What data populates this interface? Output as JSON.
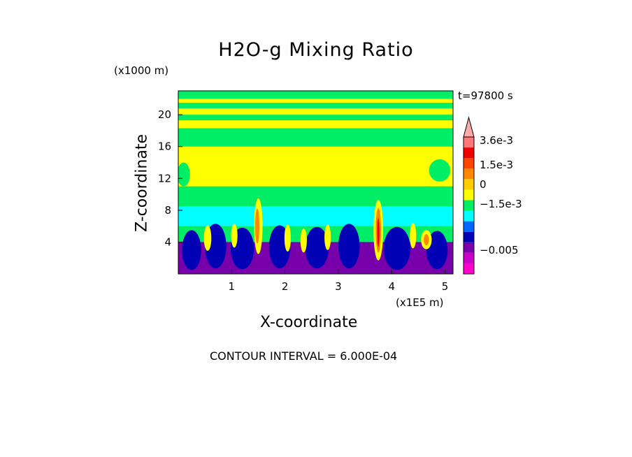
{
  "chart_data": {
    "type": "heatmap",
    "title": "H2O-g Mixing Ratio",
    "xlabel": "X-coordinate",
    "ylabel": "Z-coordinate",
    "x_scale_note": "(x1E5 m)",
    "y_scale_note": "(x1000 m)",
    "time_label": "t=97800 s",
    "contour_interval_label": "CONTOUR INTERVAL = 6.000E-04",
    "xlim": [
      0,
      5.15
    ],
    "ylim": [
      0,
      23
    ],
    "x_ticks": [
      1,
      2,
      3,
      4,
      5
    ],
    "x_tick_labels": [
      "1",
      "2",
      "3",
      "4",
      "5"
    ],
    "y_ticks": [
      4,
      8,
      12,
      16,
      20
    ],
    "y_tick_labels": [
      "4",
      "8",
      "12",
      "16",
      "20"
    ],
    "colorbar": {
      "colors": [
        "#ff00cc",
        "#c800c8",
        "#7800aa",
        "#0000b4",
        "#0066ff",
        "#00ffff",
        "#00ee66",
        "#ffff00",
        "#ffcc00",
        "#ff8800",
        "#ff4400",
        "#ee0000",
        "#ff7777",
        "#ffaaaa"
      ],
      "tick_labels": [
        {
          "value": 0.0036,
          "label": "3.6e-3"
        },
        {
          "value": 0.0015,
          "label": "1.5e-3"
        },
        {
          "value": 0,
          "label": "0"
        },
        {
          "value": -0.0015,
          "label": "−1.5e-3"
        },
        {
          "value": -0.005,
          "label": "−0.005"
        }
      ]
    },
    "regions": {
      "background_color": "#00ee66",
      "layers": [
        {
          "z_bottom": 0,
          "z_top": 4,
          "color": "#7800aa"
        },
        {
          "z_bottom": 6,
          "z_top": 8.5,
          "color": "#00ffff"
        },
        {
          "z_bottom": 8.5,
          "z_top": 11,
          "color": "#00ee66"
        },
        {
          "z_bottom": 11,
          "z_top": 16,
          "color": "#ffff00"
        }
      ],
      "blobs": [
        {
          "x": 0.25,
          "z": 3,
          "rx": 0.18,
          "rz": 2.5,
          "color": "#0000b4"
        },
        {
          "x": 0.7,
          "z": 3.5,
          "rx": 0.2,
          "rz": 2.8,
          "color": "#0000b4"
        },
        {
          "x": 1.2,
          "z": 3.2,
          "rx": 0.22,
          "rz": 2.6,
          "color": "#0000b4"
        },
        {
          "x": 1.9,
          "z": 3.4,
          "rx": 0.2,
          "rz": 2.7,
          "color": "#0000b4"
        },
        {
          "x": 2.6,
          "z": 3.3,
          "rx": 0.22,
          "rz": 2.6,
          "color": "#0000b4"
        },
        {
          "x": 3.2,
          "z": 3.5,
          "rx": 0.2,
          "rz": 2.8,
          "color": "#0000b4"
        },
        {
          "x": 4.1,
          "z": 3.2,
          "rx": 0.25,
          "rz": 2.7,
          "color": "#0000b4"
        },
        {
          "x": 4.85,
          "z": 3.0,
          "rx": 0.2,
          "rz": 2.4,
          "color": "#0000b4"
        },
        {
          "x": 0.55,
          "z": 4.5,
          "rx": 0.07,
          "rz": 1.6,
          "color": "#ffff00"
        },
        {
          "x": 1.05,
          "z": 4.8,
          "rx": 0.06,
          "rz": 1.5,
          "color": "#ffff00"
        },
        {
          "x": 1.5,
          "z": 6.0,
          "rx": 0.08,
          "rz": 3.5,
          "color": "#ffff00"
        },
        {
          "x": 1.48,
          "z": 6.0,
          "rx": 0.04,
          "rz": 2.2,
          "color": "#ff8800"
        },
        {
          "x": 2.05,
          "z": 4.5,
          "rx": 0.06,
          "rz": 1.7,
          "color": "#ffff00"
        },
        {
          "x": 2.35,
          "z": 4.2,
          "rx": 0.06,
          "rz": 1.5,
          "color": "#ffff00"
        },
        {
          "x": 2.8,
          "z": 4.6,
          "rx": 0.06,
          "rz": 1.6,
          "color": "#ffff00"
        },
        {
          "x": 3.75,
          "z": 5.5,
          "rx": 0.09,
          "rz": 3.8,
          "color": "#ffff00"
        },
        {
          "x": 3.75,
          "z": 5.5,
          "rx": 0.05,
          "rz": 2.8,
          "color": "#ff8800"
        },
        {
          "x": 3.75,
          "z": 5.2,
          "rx": 0.02,
          "rz": 1.8,
          "color": "#ee0000"
        },
        {
          "x": 4.4,
          "z": 4.8,
          "rx": 0.06,
          "rz": 1.6,
          "color": "#ffff00"
        },
        {
          "x": 4.65,
          "z": 4.3,
          "rx": 0.1,
          "rz": 1.2,
          "color": "#ffff00"
        },
        {
          "x": 4.65,
          "z": 4.3,
          "rx": 0.05,
          "rz": 0.7,
          "color": "#ff8800"
        },
        {
          "x": 0.5,
          "z": 17.5,
          "rx": 0.6,
          "rz": 0.5,
          "color": "#00ee66"
        },
        {
          "x": 1.5,
          "z": 17.0,
          "rx": 0.5,
          "rz": 0.4,
          "color": "#00ee66"
        },
        {
          "x": 3.6,
          "z": 17.5,
          "rx": 0.4,
          "rz": 0.5,
          "color": "#00ee66"
        },
        {
          "x": 4.6,
          "z": 17.8,
          "rx": 0.5,
          "rz": 0.4,
          "color": "#00ee66"
        },
        {
          "x": 2.5,
          "z": 12.5,
          "rx": 0.35,
          "rz": 1.2,
          "color": "#ffff00"
        },
        {
          "x": 4.9,
          "z": 13,
          "rx": 0.2,
          "rz": 1.4,
          "color": "#00ee66"
        },
        {
          "x": 0.1,
          "z": 12.5,
          "rx": 0.12,
          "rz": 1.5,
          "color": "#00ee66"
        }
      ],
      "bands": [
        {
          "z_bottom": 18.3,
          "z_top": 19.3,
          "color": "#ffff00"
        },
        {
          "z_bottom": 20.0,
          "z_top": 20.8,
          "color": "#ffff00"
        },
        {
          "z_bottom": 21.5,
          "z_top": 22.0,
          "color": "#ffff00"
        }
      ]
    }
  }
}
